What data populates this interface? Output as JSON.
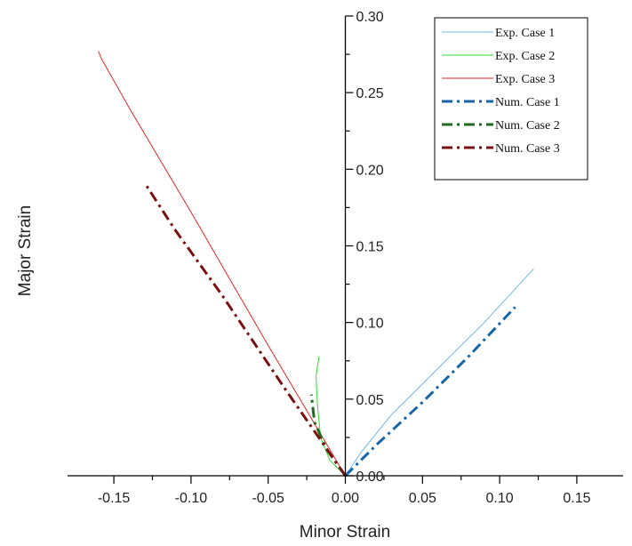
{
  "chart_data": {
    "type": "line",
    "xlabel": "Minor Strain",
    "ylabel": "Major Strain",
    "xlim": [
      -0.18,
      0.18
    ],
    "ylim": [
      0.0,
      0.3
    ],
    "xticks": [
      -0.15,
      -0.1,
      -0.05,
      0.0,
      0.05,
      0.1,
      0.15
    ],
    "xtick_labels": [
      "-0.15",
      "-0.10",
      "-0.05",
      "0.00",
      "0.05",
      "0.10",
      "0.15"
    ],
    "yticks": [
      0.0,
      0.05,
      0.1,
      0.15,
      0.2,
      0.25,
      0.3
    ],
    "ytick_labels": [
      "0.00",
      "0.05",
      "0.10",
      "0.15",
      "0.20",
      "0.25",
      "0.30"
    ],
    "legend_position": "top-right",
    "grid": false,
    "series": [
      {
        "name": "Exp. Case 1",
        "color": "#6fb8ec",
        "style": "solid",
        "width": 1,
        "points": [
          [
            0.0,
            0.0
          ],
          [
            0.01,
            0.015
          ],
          [
            0.03,
            0.04
          ],
          [
            0.06,
            0.07
          ],
          [
            0.09,
            0.1
          ],
          [
            0.122,
            0.135
          ]
        ]
      },
      {
        "name": "Exp. Case 2",
        "color": "#33dd33",
        "style": "solid",
        "width": 1,
        "points": [
          [
            0.0,
            0.0
          ],
          [
            -0.01,
            0.01
          ],
          [
            -0.016,
            0.025
          ],
          [
            -0.018,
            0.045
          ],
          [
            -0.019,
            0.065
          ],
          [
            -0.017,
            0.078
          ]
        ]
      },
      {
        "name": "Exp. Case 3",
        "color": "#ee2222",
        "style": "solid",
        "width": 1,
        "points": [
          [
            0.0,
            0.0
          ],
          [
            -0.05,
            0.085
          ],
          [
            -0.1,
            0.172
          ],
          [
            -0.14,
            0.24
          ],
          [
            -0.158,
            0.272
          ],
          [
            -0.16,
            0.277
          ]
        ]
      },
      {
        "name": "Num. Case 1",
        "color": "#1766a8",
        "style": "dashdot",
        "width": 3,
        "points": [
          [
            0.0,
            0.0
          ],
          [
            0.02,
            0.02
          ],
          [
            0.05,
            0.048
          ],
          [
            0.08,
            0.078
          ],
          [
            0.11,
            0.11
          ]
        ]
      },
      {
        "name": "Num. Case 2",
        "color": "#1f6b1f",
        "style": "dashdot",
        "width": 3,
        "points": [
          [
            0.0,
            0.0
          ],
          [
            -0.012,
            0.017
          ],
          [
            -0.02,
            0.035
          ],
          [
            -0.022,
            0.053
          ]
        ]
      },
      {
        "name": "Num. Case 3",
        "color": "#7a1010",
        "style": "dashdot",
        "width": 3,
        "points": [
          [
            0.0,
            0.0
          ],
          [
            -0.04,
            0.058
          ],
          [
            -0.08,
            0.118
          ],
          [
            -0.11,
            0.16
          ],
          [
            -0.13,
            0.191
          ]
        ]
      }
    ]
  }
}
